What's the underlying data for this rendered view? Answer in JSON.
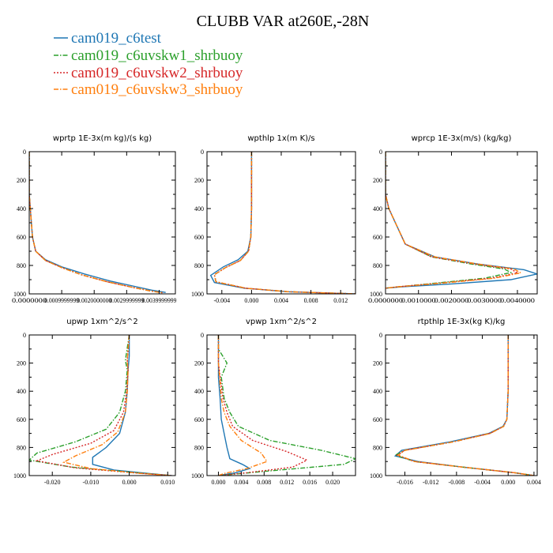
{
  "figure": {
    "title": "CLUBB VAR at260E,-28N"
  },
  "legend": [
    {
      "name": "cam019_c6test",
      "color": "#1f77b4",
      "dash": "solid"
    },
    {
      "name": "cam019_c6uvskw1_shrbuoy",
      "color": "#2ca02c",
      "dash": "dashdot"
    },
    {
      "name": "cam019_c6uvskw2_shrbuoy",
      "color": "#d62728",
      "dash": "dot"
    },
    {
      "name": "cam019_c6uvskw3_shrbuoy",
      "color": "#ff7f0e",
      "dash": "dashdot"
    }
  ],
  "chart_data": [
    {
      "type": "line",
      "title": "wprtp  1E-3x(m kg)/(s kg)",
      "xlim": [
        0.0,
        0.0045
      ],
      "ylim": [
        1000,
        0
      ],
      "xticks": [
        0.0,
        0.001,
        0.002,
        0.003,
        0.004
      ],
      "xtick_labels": [
        "0.0000000",
        "0.0009999999",
        "0.0020000000",
        "0.0029999999",
        "0.0039999999"
      ],
      "yticks": [
        0,
        200,
        400,
        600,
        800,
        1000
      ],
      "series": [
        {
          "name": "cam019_c6test",
          "x": [
            0,
            0,
            0.0001,
            0.0002,
            0.0005,
            0.001,
            0.0017,
            0.0025,
            0.0033,
            0.0038,
            0.0042
          ],
          "y": [
            0,
            300,
            600,
            700,
            760,
            810,
            860,
            910,
            950,
            975,
            990
          ]
        },
        {
          "name": "cam019_c6uvskw1_shrbuoy",
          "x": [
            0,
            0,
            0.0001,
            0.0002,
            0.0005,
            0.001,
            0.0016,
            0.0024,
            0.0032,
            0.0037,
            0.0041
          ],
          "y": [
            0,
            300,
            600,
            700,
            765,
            815,
            865,
            915,
            955,
            978,
            992
          ]
        },
        {
          "name": "cam019_c6uvskw2_shrbuoy",
          "x": [
            0,
            0,
            0.0001,
            0.0002,
            0.0005,
            0.001,
            0.0016,
            0.0024,
            0.0032,
            0.0037,
            0.0041
          ],
          "y": [
            0,
            300,
            600,
            700,
            765,
            815,
            865,
            915,
            955,
            978,
            992
          ]
        },
        {
          "name": "cam019_c6uvskw3_shrbuoy",
          "x": [
            0,
            0,
            0.0001,
            0.0002,
            0.0005,
            0.001,
            0.0016,
            0.0024,
            0.0032,
            0.0037,
            0.0041
          ],
          "y": [
            0,
            300,
            600,
            700,
            765,
            815,
            865,
            915,
            955,
            978,
            992
          ]
        }
      ]
    },
    {
      "type": "line",
      "title": "wpthlp  1x(m K)/s",
      "xlim": [
        -0.006,
        0.014
      ],
      "ylim": [
        1000,
        0
      ],
      "xticks": [
        -0.004,
        0.0,
        0.004,
        0.008,
        0.012
      ],
      "xtick_labels": [
        "-0.004",
        "0.000",
        "0.004",
        "0.008",
        "0.012"
      ],
      "yticks": [
        0,
        200,
        400,
        600,
        800,
        1000
      ],
      "series": [
        {
          "name": "cam019_c6test",
          "x": [
            0,
            0,
            -0.0001,
            -0.0005,
            -0.0018,
            -0.0038,
            -0.0055,
            -0.005,
            -0.001,
            0.005,
            0.011,
            0.014
          ],
          "y": [
            0,
            400,
            600,
            700,
            760,
            810,
            870,
            920,
            960,
            985,
            995,
            1000
          ]
        },
        {
          "name": "cam019_c6uvskw1_shrbuoy",
          "x": [
            0,
            0,
            -0.0001,
            -0.0004,
            -0.0015,
            -0.0035,
            -0.005,
            -0.0048,
            -0.0008,
            0.005,
            0.011,
            0.014
          ],
          "y": [
            0,
            400,
            600,
            700,
            765,
            815,
            865,
            915,
            960,
            985,
            995,
            1000
          ]
        },
        {
          "name": "cam019_c6uvskw2_shrbuoy",
          "x": [
            0,
            0,
            -0.0001,
            -0.0004,
            -0.0015,
            -0.0035,
            -0.005,
            -0.0048,
            -0.0008,
            0.005,
            0.011,
            0.014
          ],
          "y": [
            0,
            400,
            600,
            700,
            765,
            815,
            865,
            915,
            960,
            985,
            995,
            1000
          ]
        },
        {
          "name": "cam019_c6uvskw3_shrbuoy",
          "x": [
            0,
            0,
            -0.0001,
            -0.0004,
            -0.0015,
            -0.0035,
            -0.005,
            -0.0048,
            -0.0008,
            0.005,
            0.011,
            0.014
          ],
          "y": [
            0,
            400,
            600,
            700,
            765,
            815,
            865,
            915,
            960,
            985,
            995,
            1000
          ]
        }
      ]
    },
    {
      "type": "line",
      "title": "wprcp  1E-3x(m/s) (kg/kg)",
      "xlim": [
        0.0,
        0.0046
      ],
      "ylim": [
        1000,
        0
      ],
      "xticks": [
        0.0,
        0.001,
        0.002,
        0.003,
        0.004
      ],
      "xtick_labels": [
        "0.0000000",
        "0.0010000",
        "0.0020000",
        "0.0030000",
        "0.0040000"
      ],
      "yticks": [
        0,
        200,
        400,
        600,
        800,
        1000
      ],
      "series": [
        {
          "name": "cam019_c6test",
          "x": [
            0,
            0,
            0.0001,
            0.0003,
            0.0006,
            0.0015,
            0.0028,
            0.0042,
            0.0046,
            0.0038,
            0.002,
            0.0005,
            0
          ],
          "y": [
            0,
            300,
            400,
            500,
            650,
            740,
            790,
            830,
            860,
            900,
            930,
            950,
            960
          ]
        },
        {
          "name": "cam019_c6uvskw1_shrbuoy",
          "x": [
            0,
            0,
            0.0001,
            0.0003,
            0.0006,
            0.0014,
            0.0026,
            0.0036,
            0.0038,
            0.003,
            0.0015,
            0.0004,
            0
          ],
          "y": [
            0,
            300,
            400,
            500,
            650,
            740,
            790,
            825,
            850,
            890,
            925,
            950,
            960
          ]
        },
        {
          "name": "cam019_c6uvskw2_shrbuoy",
          "x": [
            0,
            0,
            0.0001,
            0.0003,
            0.0006,
            0.0014,
            0.0027,
            0.0038,
            0.004,
            0.0032,
            0.0016,
            0.0004,
            0
          ],
          "y": [
            0,
            300,
            400,
            500,
            650,
            740,
            790,
            825,
            852,
            890,
            925,
            950,
            960
          ]
        },
        {
          "name": "cam019_c6uvskw3_shrbuoy",
          "x": [
            0,
            0,
            0.0001,
            0.0003,
            0.0006,
            0.0015,
            0.0028,
            0.0039,
            0.0041,
            0.0033,
            0.0017,
            0.0004,
            0
          ],
          "y": [
            0,
            300,
            400,
            500,
            650,
            740,
            790,
            825,
            852,
            890,
            925,
            950,
            960
          ]
        }
      ]
    },
    {
      "type": "line",
      "title": "upwp  1xm^2/s^2",
      "xlim": [
        -0.026,
        0.012
      ],
      "ylim": [
        1000,
        0
      ],
      "xticks": [
        -0.02,
        -0.01,
        0.0,
        0.01
      ],
      "xtick_labels": [
        "-0.020",
        "-0.010",
        "0.000",
        "0.010"
      ],
      "yticks": [
        0,
        200,
        400,
        600,
        800,
        1000
      ],
      "series": [
        {
          "name": "cam019_c6test",
          "x": [
            0,
            0,
            -0.0003,
            -0.0005,
            -0.001,
            -0.0025,
            -0.006,
            -0.0095,
            -0.0095,
            -0.004,
            0.005,
            0.011
          ],
          "y": [
            0,
            150,
            250,
            400,
            550,
            700,
            800,
            870,
            920,
            960,
            985,
            1000
          ]
        },
        {
          "name": "cam019_c6uvskw1_shrbuoy",
          "x": [
            0,
            -0.001,
            -0.0005,
            -0.001,
            -0.0025,
            -0.006,
            -0.014,
            -0.024,
            -0.026,
            -0.015,
            0.002,
            0.011
          ],
          "y": [
            0,
            180,
            250,
            400,
            550,
            670,
            760,
            840,
            890,
            940,
            980,
            1000
          ]
        },
        {
          "name": "cam019_c6uvskw2_shrbuoy",
          "x": [
            0,
            -0.0005,
            -0.0003,
            -0.0007,
            -0.0015,
            -0.004,
            -0.01,
            -0.02,
            -0.024,
            -0.014,
            0.002,
            0.011
          ],
          "y": [
            0,
            180,
            250,
            400,
            550,
            680,
            770,
            850,
            895,
            945,
            982,
            1000
          ]
        },
        {
          "name": "cam019_c6uvskw3_shrbuoy",
          "x": [
            0,
            -0.0005,
            -0.0003,
            -0.0005,
            -0.001,
            -0.003,
            -0.007,
            -0.014,
            -0.017,
            -0.01,
            0.003,
            0.011
          ],
          "y": [
            0,
            180,
            250,
            400,
            550,
            690,
            780,
            860,
            905,
            950,
            985,
            1000
          ]
        }
      ]
    },
    {
      "type": "line",
      "title": "vpwp  1xm^2/s^2",
      "xlim": [
        -0.002,
        0.024
      ],
      "ylim": [
        1000,
        0
      ],
      "xticks": [
        0.0,
        0.004,
        0.008,
        0.012,
        0.016,
        0.02
      ],
      "xtick_labels": [
        "0.000",
        "0.004",
        "0.008",
        "0.012",
        "0.016",
        "0.020"
      ],
      "yticks": [
        0,
        200,
        400,
        600,
        800,
        1000
      ],
      "series": [
        {
          "name": "cam019_c6test",
          "x": [
            0,
            0,
            0,
            0.0003,
            0.0005,
            0.001,
            0.0015,
            0.002,
            0.0042,
            0.0055,
            0.003,
            0
          ],
          "y": [
            0,
            200,
            300,
            450,
            600,
            700,
            800,
            880,
            920,
            950,
            980,
            1000
          ]
        },
        {
          "name": "cam019_c6uvskw1_shrbuoy",
          "x": [
            0,
            0,
            0.0015,
            0.0005,
            0.001,
            0.002,
            0.0035,
            0.009,
            0.018,
            0.024,
            0.022,
            0.008,
            0
          ],
          "y": [
            0,
            100,
            200,
            300,
            450,
            550,
            650,
            750,
            820,
            880,
            920,
            970,
            1000
          ]
        },
        {
          "name": "cam019_c6uvskw2_shrbuoy",
          "x": [
            0,
            0,
            0.0003,
            0.0008,
            0.0015,
            0.0025,
            0.006,
            0.012,
            0.0155,
            0.013,
            0.005,
            0
          ],
          "y": [
            0,
            200,
            300,
            450,
            550,
            650,
            750,
            830,
            890,
            940,
            980,
            1000
          ]
        },
        {
          "name": "cam019_c6uvskw3_shrbuoy",
          "x": [
            0,
            0,
            0.0002,
            0.0005,
            0.001,
            0.002,
            0.004,
            0.0075,
            0.0085,
            0.005,
            0.001,
            0
          ],
          "y": [
            0,
            200,
            300,
            450,
            550,
            650,
            750,
            840,
            900,
            950,
            985,
            1000
          ]
        }
      ]
    },
    {
      "type": "line",
      "title": "rtpthlp  1E-3x(kg K)/kg",
      "xlim": [
        -0.019,
        0.0045
      ],
      "ylim": [
        1000,
        0
      ],
      "xticks": [
        -0.016,
        -0.012,
        -0.008,
        -0.004,
        0.0,
        0.004
      ],
      "xtick_labels": [
        "-0.016",
        "-0.012",
        "-0.008",
        "-0.004",
        "0.000",
        "0.004"
      ],
      "yticks": [
        0,
        200,
        400,
        600,
        800,
        1000
      ],
      "series": [
        {
          "name": "cam019_c6test",
          "x": [
            0,
            0,
            -0.0002,
            -0.0008,
            -0.003,
            -0.009,
            -0.0165,
            -0.0175,
            -0.014,
            -0.007,
            0.001,
            0.004
          ],
          "y": [
            0,
            400,
            600,
            650,
            700,
            760,
            820,
            860,
            900,
            940,
            980,
            1000
          ]
        },
        {
          "name": "cam019_c6uvskw1_shrbuoy",
          "x": [
            0,
            0,
            -0.0002,
            -0.0007,
            -0.0028,
            -0.0085,
            -0.016,
            -0.0175,
            -0.0145,
            -0.007,
            0.001,
            0.004
          ],
          "y": [
            0,
            400,
            600,
            650,
            700,
            760,
            820,
            855,
            900,
            940,
            980,
            1000
          ]
        },
        {
          "name": "cam019_c6uvskw2_shrbuoy",
          "x": [
            0,
            0,
            -0.0002,
            -0.0007,
            -0.0028,
            -0.0085,
            -0.016,
            -0.0172,
            -0.0145,
            -0.007,
            0.001,
            0.004
          ],
          "y": [
            0,
            400,
            600,
            650,
            700,
            760,
            820,
            855,
            900,
            940,
            980,
            1000
          ]
        },
        {
          "name": "cam019_c6uvskw3_shrbuoy",
          "x": [
            0,
            0,
            -0.0002,
            -0.0007,
            -0.0028,
            -0.0085,
            -0.016,
            -0.017,
            -0.0145,
            -0.007,
            0.001,
            0.004
          ],
          "y": [
            0,
            400,
            600,
            650,
            700,
            760,
            820,
            855,
            900,
            940,
            980,
            1000
          ]
        }
      ]
    }
  ]
}
